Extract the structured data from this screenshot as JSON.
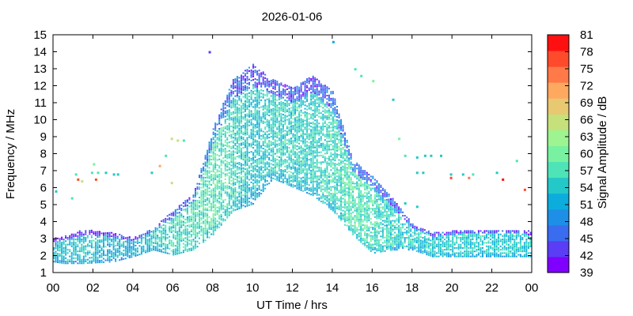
{
  "chart_data": {
    "type": "heatmap",
    "title": "2026-01-06",
    "xlabel": "UT Time / hrs",
    "ylabel": "Frequency / MHz",
    "xlim": [
      0,
      24
    ],
    "ylim": [
      1,
      15
    ],
    "x_ticks": [
      "00",
      "02",
      "04",
      "06",
      "08",
      "10",
      "12",
      "14",
      "16",
      "18",
      "20",
      "22",
      "00"
    ],
    "y_ticks": [
      "1",
      "2",
      "3",
      "4",
      "5",
      "6",
      "7",
      "8",
      "9",
      "10",
      "11",
      "12",
      "13",
      "14",
      "15"
    ],
    "grid": false,
    "colorbar": {
      "label": "Signal Amplitude / dB",
      "range": [
        39,
        81
      ],
      "step": 3,
      "ticks": [
        "39",
        "42",
        "45",
        "48",
        "51",
        "54",
        "57",
        "60",
        "63",
        "66",
        "69",
        "72",
        "75",
        "78",
        "81"
      ],
      "colors": [
        "#7f00ff",
        "#5a3df5",
        "#3a6cf0",
        "#1e8fe6",
        "#0cacdd",
        "#24c8c8",
        "#4ee4b8",
        "#78f2a0",
        "#9ef490",
        "#c6e07c",
        "#e8c870",
        "#ffa860",
        "#ff7a48",
        "#ff4a2c",
        "#ff1010"
      ]
    },
    "traces": {
      "time_step_hrs": 0.1,
      "freq_step_mhz": 0.1,
      "bands": [
        {
          "t": [
            0,
            0.5,
            1.5,
            3,
            4,
            5,
            6,
            7,
            8,
            9,
            10,
            11,
            12,
            13,
            14,
            15,
            16,
            17,
            18,
            19,
            20,
            21,
            22,
            23,
            24
          ],
          "lo": [
            1.6,
            1.5,
            1.5,
            1.6,
            1.9,
            2.3,
            2.0,
            2.3,
            3.2,
            4.6,
            5.0,
            6.5,
            6.0,
            5.5,
            4.6,
            3.2,
            2.1,
            2.3,
            2.3,
            1.9,
            1.9,
            1.9,
            1.9,
            1.9,
            1.9
          ],
          "hi": [
            3.0,
            3.1,
            3.5,
            3.3,
            3.0,
            3.6,
            4.6,
            5.6,
            9.5,
            12.3,
            13.2,
            12.3,
            11.8,
            12.6,
            11.6,
            7.6,
            6.6,
            5.3,
            3.8,
            3.3,
            3.4,
            3.5,
            3.5,
            3.5,
            3.4
          ],
          "amp": [
            52,
            53,
            53,
            52,
            52,
            54,
            56,
            56,
            58,
            56,
            54,
            55,
            55,
            55,
            56,
            58,
            56,
            55,
            54,
            54,
            54,
            54,
            54,
            54,
            53
          ]
        }
      ],
      "sporadic": [
        {
          "t": 0.1,
          "f": 5.7,
          "amp": 54
        },
        {
          "t": 0.9,
          "f": 5.3,
          "amp": 57
        },
        {
          "t": 1.1,
          "f": 6.7,
          "amp": 57
        },
        {
          "t": 1.2,
          "f": 6.4,
          "amp": 78
        },
        {
          "t": 1.4,
          "f": 6.3,
          "amp": 66
        },
        {
          "t": 1.9,
          "f": 6.8,
          "amp": 57
        },
        {
          "t": 2.0,
          "f": 7.3,
          "amp": 60
        },
        {
          "t": 2.1,
          "f": 6.4,
          "amp": 78
        },
        {
          "t": 2.2,
          "f": 6.8,
          "amp": 57
        },
        {
          "t": 2.6,
          "f": 6.8,
          "amp": 54
        },
        {
          "t": 3.0,
          "f": 6.7,
          "amp": 54
        },
        {
          "t": 3.2,
          "f": 6.7,
          "amp": 54
        },
        {
          "t": 4.9,
          "f": 6.8,
          "amp": 54
        },
        {
          "t": 5.3,
          "f": 7.2,
          "amp": 72
        },
        {
          "t": 5.6,
          "f": 7.8,
          "amp": 57
        },
        {
          "t": 5.9,
          "f": 6.2,
          "amp": 66
        },
        {
          "t": 5.9,
          "f": 8.8,
          "amp": 66
        },
        {
          "t": 6.2,
          "f": 8.7,
          "amp": 66
        },
        {
          "t": 6.5,
          "f": 8.7,
          "amp": 57
        },
        {
          "t": 7.8,
          "f": 13.9,
          "amp": 42
        },
        {
          "t": 14.0,
          "f": 14.5,
          "amp": 51
        },
        {
          "t": 15.1,
          "f": 12.9,
          "amp": 57
        },
        {
          "t": 15.4,
          "f": 12.5,
          "amp": 57
        },
        {
          "t": 16.0,
          "f": 12.2,
          "amp": 60
        },
        {
          "t": 17.0,
          "f": 11.1,
          "amp": 54
        },
        {
          "t": 17.3,
          "f": 8.8,
          "amp": 60
        },
        {
          "t": 17.6,
          "f": 7.8,
          "amp": 57
        },
        {
          "t": 18.2,
          "f": 7.7,
          "amp": 54
        },
        {
          "t": 18.6,
          "f": 7.8,
          "amp": 54
        },
        {
          "t": 18.9,
          "f": 7.8,
          "amp": 54
        },
        {
          "t": 19.4,
          "f": 7.8,
          "amp": 54
        },
        {
          "t": 18.2,
          "f": 6.8,
          "amp": 54
        },
        {
          "t": 18.5,
          "f": 6.8,
          "amp": 54
        },
        {
          "t": 19.9,
          "f": 6.7,
          "amp": 54
        },
        {
          "t": 19.9,
          "f": 6.5,
          "amp": 78
        },
        {
          "t": 20.5,
          "f": 6.7,
          "amp": 54
        },
        {
          "t": 20.8,
          "f": 6.5,
          "amp": 75
        },
        {
          "t": 21.0,
          "f": 6.7,
          "amp": 57
        },
        {
          "t": 22.2,
          "f": 6.8,
          "amp": 54
        },
        {
          "t": 22.5,
          "f": 6.4,
          "amp": 81
        },
        {
          "t": 23.2,
          "f": 7.5,
          "amp": 57
        },
        {
          "t": 23.6,
          "f": 5.8,
          "amp": 78
        },
        {
          "t": 17.6,
          "f": 5.0,
          "amp": 54
        },
        {
          "t": 18.2,
          "f": 4.8,
          "amp": 54
        }
      ]
    }
  }
}
